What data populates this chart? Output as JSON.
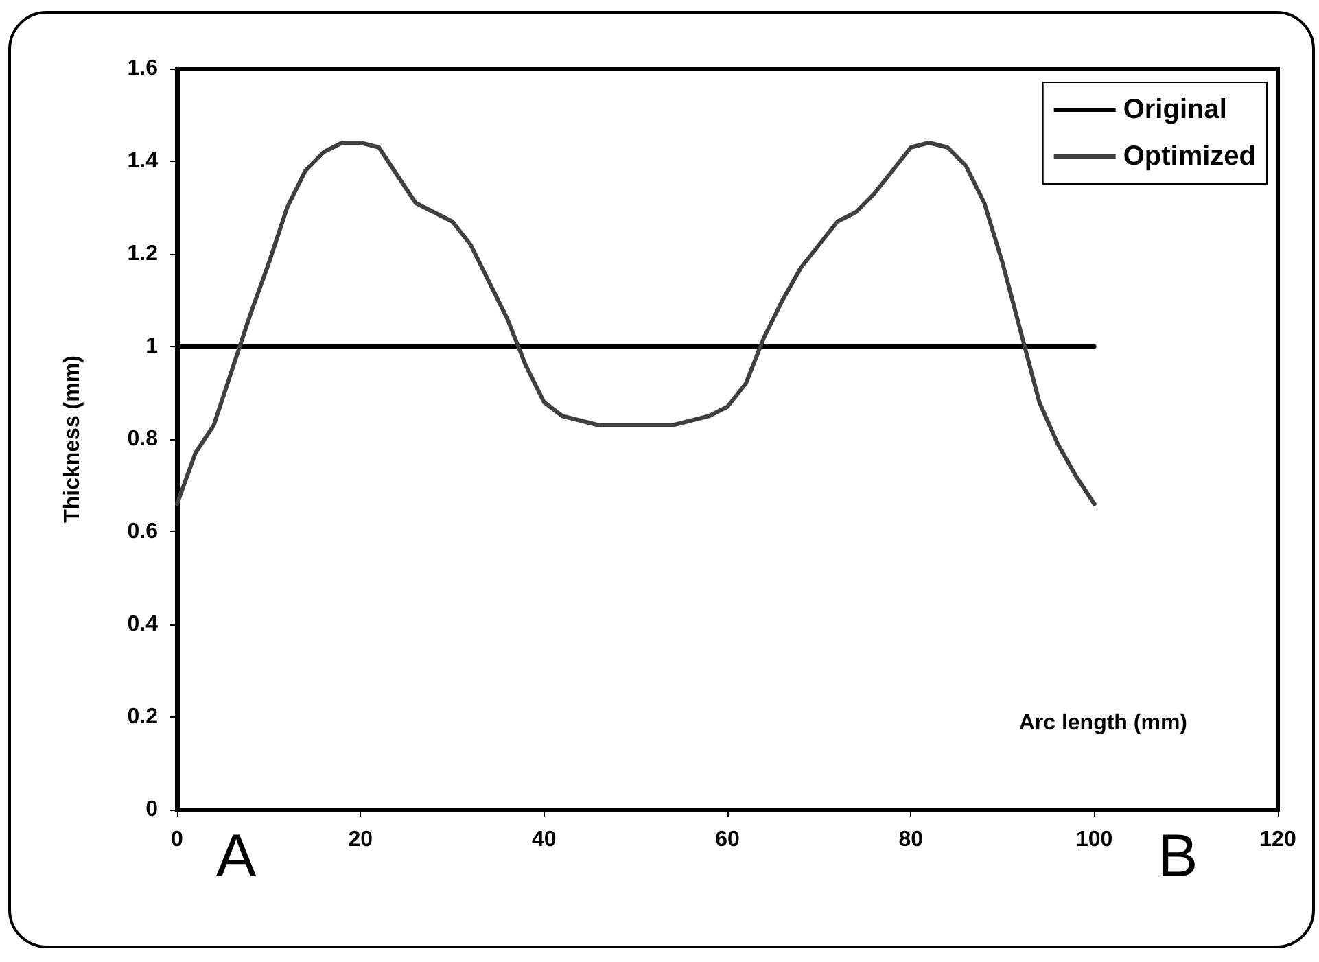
{
  "chart_data": {
    "type": "line",
    "xlabel": "Arc length (mm)",
    "ylabel": "Thickness (mm)",
    "xlim": [
      0,
      120
    ],
    "xticks": [
      0,
      20,
      40,
      60,
      80,
      100,
      120
    ],
    "ylim": [
      0,
      1.6
    ],
    "yticks": [
      0,
      0.2,
      0.4,
      0.6,
      0.8,
      1,
      1.2,
      1.4,
      1.6
    ],
    "grid": false,
    "legend": "top right",
    "marker": "none",
    "line_style": "solid",
    "annotations": [
      "A",
      "B"
    ],
    "series": [
      {
        "name": "Original",
        "color": "#000000",
        "x": [
          0,
          100
        ],
        "values": [
          1,
          1
        ]
      },
      {
        "name": "Optimized",
        "color": "#404040",
        "x": [
          0,
          2,
          4,
          6,
          8,
          10,
          12,
          14,
          16,
          18,
          20,
          22,
          24,
          26,
          28,
          30,
          32,
          34,
          36,
          38,
          40,
          42,
          44,
          46,
          50,
          54,
          56,
          58,
          60,
          62,
          64,
          66,
          68,
          70,
          72,
          74,
          76,
          78,
          80,
          82,
          84,
          86,
          88,
          90,
          92,
          94,
          96,
          98,
          100
        ],
        "values": [
          0.66,
          0.77,
          0.83,
          0.95,
          1.07,
          1.18,
          1.3,
          1.38,
          1.42,
          1.44,
          1.44,
          1.43,
          1.37,
          1.31,
          1.29,
          1.27,
          1.22,
          1.14,
          1.06,
          0.96,
          0.88,
          0.85,
          0.84,
          0.83,
          0.83,
          0.83,
          0.84,
          0.85,
          0.87,
          0.92,
          1.02,
          1.1,
          1.17,
          1.22,
          1.27,
          1.29,
          1.33,
          1.38,
          1.43,
          1.44,
          1.43,
          1.39,
          1.31,
          1.18,
          1.03,
          0.88,
          0.79,
          0.72,
          0.66
        ]
      }
    ]
  }
}
